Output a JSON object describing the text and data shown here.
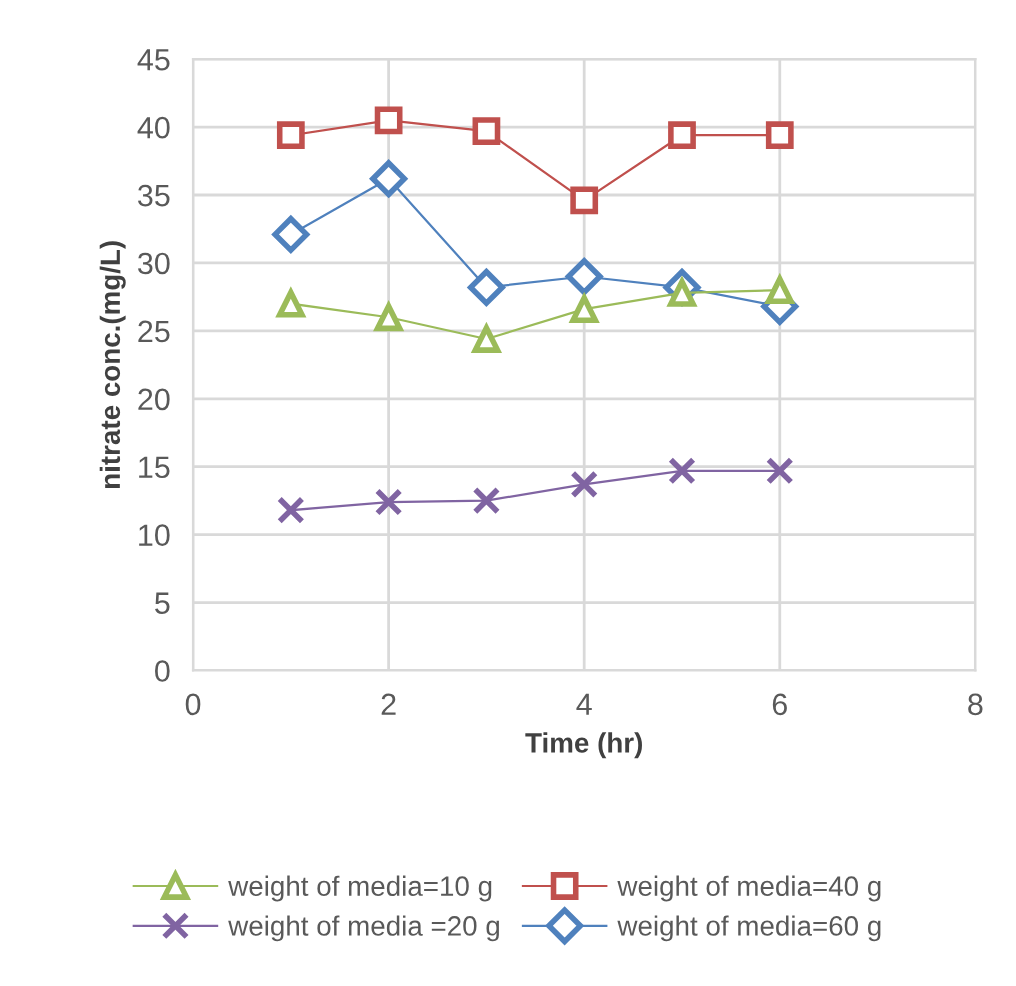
{
  "chart_data": {
    "type": "line",
    "xlabel": "Time (hr)",
    "ylabel": "nitrate conc.(mg/L)",
    "xlim": [
      0,
      8
    ],
    "xticks": [
      0,
      2,
      4,
      6,
      8
    ],
    "ylim": [
      0,
      45
    ],
    "yticks": [
      0,
      5,
      10,
      15,
      20,
      25,
      30,
      35,
      40,
      45
    ],
    "grid": true,
    "legend": "bottom",
    "series": [
      {
        "name": "weight of media=10 g",
        "color": "#9bbb59",
        "marker": "triangle",
        "x": [
          1,
          2,
          3,
          4,
          5,
          6
        ],
        "values": [
          27.0,
          26.0,
          24.4,
          26.6,
          27.8,
          28.0
        ]
      },
      {
        "name": "weight of media =20 g",
        "color": "#8064a2",
        "marker": "cross",
        "x": [
          1,
          2,
          3,
          4,
          5,
          6
        ],
        "values": [
          11.8,
          12.4,
          12.5,
          13.7,
          14.7,
          14.7
        ]
      },
      {
        "name": "weight of media=40 g",
        "color": "#c0504d",
        "marker": "square",
        "x": [
          1,
          2,
          3,
          4,
          5,
          6
        ],
        "values": [
          39.4,
          40.5,
          39.7,
          34.6,
          39.4,
          39.4
        ]
      },
      {
        "name": "weight of media=60 g",
        "color": "#4f81bd",
        "marker": "diamond",
        "x": [
          1,
          2,
          3,
          4,
          5,
          6
        ],
        "values": [
          32.1,
          36.2,
          28.2,
          29.0,
          28.2,
          26.8
        ]
      }
    ]
  }
}
